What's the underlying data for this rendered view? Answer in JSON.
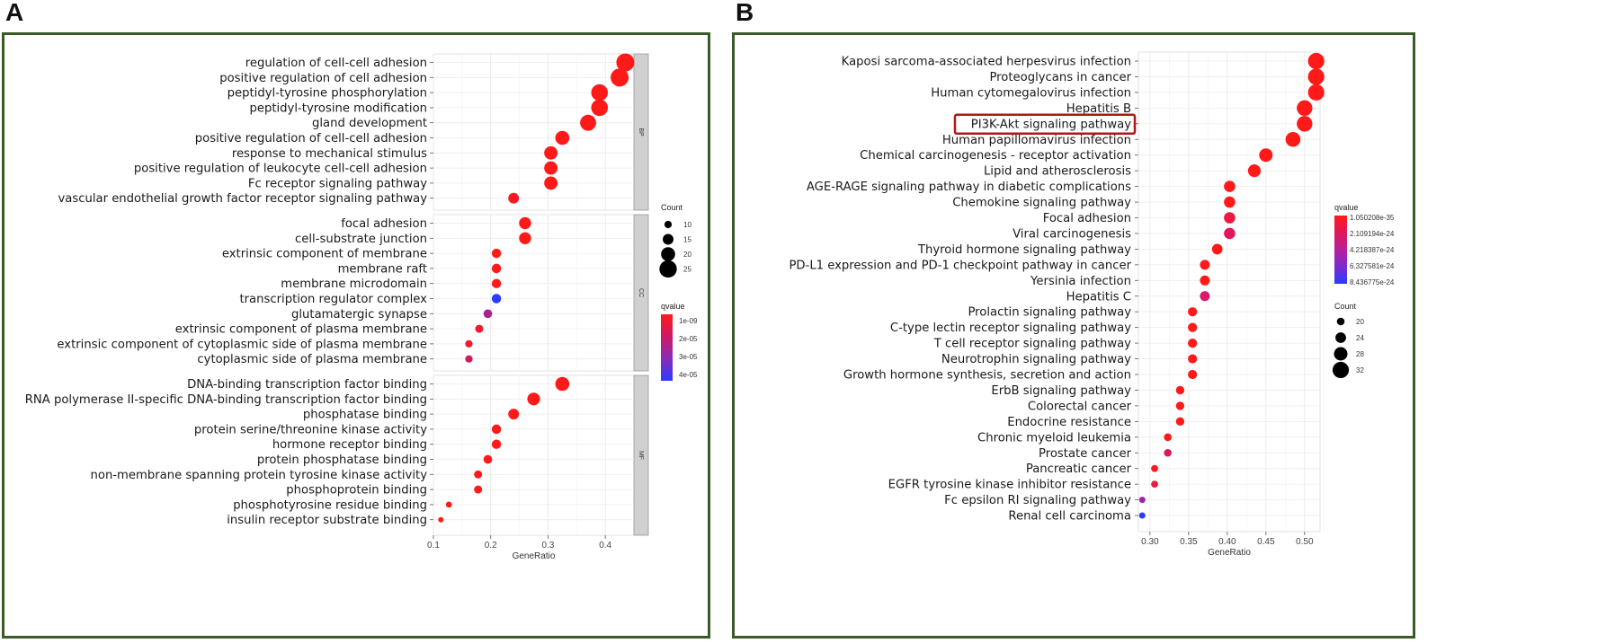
{
  "panels": [
    {
      "letter": "A"
    },
    {
      "letter": "B"
    }
  ],
  "chart_data": [
    {
      "type": "scatter",
      "panel": "A",
      "xlabel": "GeneRatio",
      "xlim": [
        0.1,
        0.45
      ],
      "xticks": [
        "0.1",
        "0.2",
        "0.3",
        "0.4"
      ],
      "facets": [
        {
          "strip": "BP",
          "terms": [
            {
              "label": "regulation of cell-cell adhesion",
              "x": 0.435,
              "count": 26,
              "q": 0
            },
            {
              "label": "positive regulation of cell adhesion",
              "x": 0.425,
              "count": 26,
              "q": 0
            },
            {
              "label": "peptidyl-tyrosine phosphorylation",
              "x": 0.39,
              "count": 24,
              "q": 0
            },
            {
              "label": "peptidyl-tyrosine modification",
              "x": 0.39,
              "count": 24,
              "q": 0
            },
            {
              "label": "gland development",
              "x": 0.37,
              "count": 23,
              "q": 0
            },
            {
              "label": "positive regulation of cell-cell adhesion",
              "x": 0.325,
              "count": 20,
              "q": 0
            },
            {
              "label": "response to mechanical stimulus",
              "x": 0.305,
              "count": 19,
              "q": 0
            },
            {
              "label": "positive regulation of leukocyte cell-cell adhesion",
              "x": 0.305,
              "count": 19,
              "q": 0
            },
            {
              "label": "Fc receptor signaling pathway",
              "x": 0.305,
              "count": 19,
              "q": 0
            },
            {
              "label": "vascular endothelial growth factor receptor signaling pathway",
              "x": 0.24,
              "count": 15,
              "q": 0.05
            }
          ]
        },
        {
          "strip": "CC",
          "terms": [
            {
              "label": "focal adhesion",
              "x": 0.26,
              "count": 17,
              "q": 0
            },
            {
              "label": "cell-substrate junction",
              "x": 0.26,
              "count": 17,
              "q": 0
            },
            {
              "label": "extrinsic component of membrane",
              "x": 0.21,
              "count": 13,
              "q": 0
            },
            {
              "label": "membrane raft",
              "x": 0.21,
              "count": 13,
              "q": 0
            },
            {
              "label": "membrane microdomain",
              "x": 0.21,
              "count": 13,
              "q": 0
            },
            {
              "label": "transcription regulator complex",
              "x": 0.21,
              "count": 13,
              "q": 1
            },
            {
              "label": "glutamatergic synapse",
              "x": 0.195,
              "count": 12,
              "q": 0.5
            },
            {
              "label": "extrinsic component of plasma membrane",
              "x": 0.18,
              "count": 11,
              "q": 0.1
            },
            {
              "label": "extrinsic component of cytoplasmic side of plasma membrane",
              "x": 0.162,
              "count": 10,
              "q": 0.1
            },
            {
              "label": "cytoplasmic side of plasma membrane",
              "x": 0.162,
              "count": 10,
              "q": 0.3
            }
          ]
        },
        {
          "strip": "MF",
          "terms": [
            {
              "label": "DNA-binding transcription factor binding",
              "x": 0.325,
              "count": 20,
              "q": 0
            },
            {
              "label": "RNA polymerase II-specific DNA-binding transcription factor binding",
              "x": 0.275,
              "count": 18,
              "q": 0
            },
            {
              "label": "phosphatase binding",
              "x": 0.24,
              "count": 15,
              "q": 0
            },
            {
              "label": "protein serine/threonine kinase activity",
              "x": 0.21,
              "count": 13,
              "q": 0
            },
            {
              "label": "hormone receptor binding",
              "x": 0.21,
              "count": 13,
              "q": 0
            },
            {
              "label": "protein phosphatase binding",
              "x": 0.195,
              "count": 12,
              "q": 0
            },
            {
              "label": "non-membrane spanning protein tyrosine kinase activity",
              "x": 0.178,
              "count": 11,
              "q": 0
            },
            {
              "label": "phosphoprotein binding",
              "x": 0.178,
              "count": 11,
              "q": 0
            },
            {
              "label": "phosphotyrosine residue binding",
              "x": 0.127,
              "count": 8,
              "q": 0
            },
            {
              "label": "insulin receptor substrate binding",
              "x": 0.113,
              "count": 7,
              "q": 0
            }
          ]
        }
      ],
      "size_legend": {
        "title": "Count",
        "values": [
          "10",
          "15",
          "20",
          "25"
        ]
      },
      "color_legend": {
        "title": "qvalue",
        "labels": [
          "1e-09",
          "2e-05",
          "3e-05",
          "4e-05"
        ],
        "colors": [
          "#ff1a1a",
          "#cc1a66",
          "#8a2ab8",
          "#2a3cff"
        ]
      }
    },
    {
      "type": "scatter",
      "panel": "B",
      "xlabel": "GeneRatio",
      "xlim": [
        0.29,
        0.52
      ],
      "xticks": [
        "0.30",
        "0.35",
        "0.40",
        "0.45",
        "0.50"
      ],
      "highlight": "PI3K-Akt signaling pathway",
      "terms": [
        {
          "label": "Kaposi sarcoma-associated herpesvirus infection",
          "x": 0.515,
          "count": 32,
          "q": 0
        },
        {
          "label": "Proteoglycans in cancer",
          "x": 0.515,
          "count": 32,
          "q": 0
        },
        {
          "label": "Human cytomegalovirus infection",
          "x": 0.515,
          "count": 32,
          "q": 0
        },
        {
          "label": "Hepatitis B",
          "x": 0.5,
          "count": 31,
          "q": 0
        },
        {
          "label": "PI3K-Akt signaling pathway",
          "x": 0.5,
          "count": 31,
          "q": 0
        },
        {
          "label": "Human papillomavirus infection",
          "x": 0.485,
          "count": 30,
          "q": 0
        },
        {
          "label": "Chemical carcinogenesis - receptor activation",
          "x": 0.45,
          "count": 28,
          "q": 0
        },
        {
          "label": "Lipid and atherosclerosis",
          "x": 0.435,
          "count": 27,
          "q": 0
        },
        {
          "label": "AGE-RAGE signaling pathway in diabetic complications",
          "x": 0.403,
          "count": 25,
          "q": 0
        },
        {
          "label": "Chemokine signaling pathway",
          "x": 0.403,
          "count": 25,
          "q": 0
        },
        {
          "label": "Focal adhesion",
          "x": 0.403,
          "count": 25,
          "q": 0.15
        },
        {
          "label": "Viral carcinogenesis",
          "x": 0.403,
          "count": 25,
          "q": 0.25
        },
        {
          "label": "Thyroid hormone signaling pathway",
          "x": 0.387,
          "count": 24,
          "q": 0
        },
        {
          "label": "PD-L1 expression and PD-1 checkpoint pathway in cancer",
          "x": 0.371,
          "count": 23,
          "q": 0
        },
        {
          "label": "Yersinia infection",
          "x": 0.371,
          "count": 23,
          "q": 0
        },
        {
          "label": "Hepatitis C",
          "x": 0.371,
          "count": 23,
          "q": 0.3
        },
        {
          "label": "Prolactin signaling pathway",
          "x": 0.355,
          "count": 22,
          "q": 0
        },
        {
          "label": "C-type lectin receptor signaling pathway",
          "x": 0.355,
          "count": 22,
          "q": 0
        },
        {
          "label": "T cell receptor signaling pathway",
          "x": 0.355,
          "count": 22,
          "q": 0
        },
        {
          "label": "Neurotrophin signaling pathway",
          "x": 0.355,
          "count": 22,
          "q": 0
        },
        {
          "label": "Growth hormone synthesis, secretion and action",
          "x": 0.355,
          "count": 22,
          "q": 0
        },
        {
          "label": "ErbB signaling pathway",
          "x": 0.339,
          "count": 21,
          "q": 0
        },
        {
          "label": "Colorectal cancer",
          "x": 0.339,
          "count": 21,
          "q": 0
        },
        {
          "label": "Endocrine resistance",
          "x": 0.339,
          "count": 21,
          "q": 0
        },
        {
          "label": "Chronic myeloid leukemia",
          "x": 0.323,
          "count": 20,
          "q": 0
        },
        {
          "label": "Prostate cancer",
          "x": 0.323,
          "count": 20,
          "q": 0.25
        },
        {
          "label": "Pancreatic cancer",
          "x": 0.306,
          "count": 19,
          "q": 0
        },
        {
          "label": "EGFR tyrosine kinase inhibitor resistance",
          "x": 0.306,
          "count": 19,
          "q": 0.15
        },
        {
          "label": "Fc epsilon RI signaling pathway",
          "x": 0.29,
          "count": 18,
          "q": 0.6
        },
        {
          "label": "Renal cell carcinoma",
          "x": 0.29,
          "count": 18,
          "q": 1
        }
      ],
      "size_legend": {
        "title": "Count",
        "values": [
          "20",
          "24",
          "28",
          "32"
        ]
      },
      "color_legend": {
        "title": "qvalue",
        "labels": [
          "1.050208e-35",
          "2.109194e-24",
          "4.218387e-24",
          "6.327581e-24",
          "8.436775e-24"
        ],
        "colors": [
          "#ff1a1a",
          "#e0185a",
          "#b8209a",
          "#7a2ad0",
          "#2a3cff"
        ]
      }
    }
  ]
}
